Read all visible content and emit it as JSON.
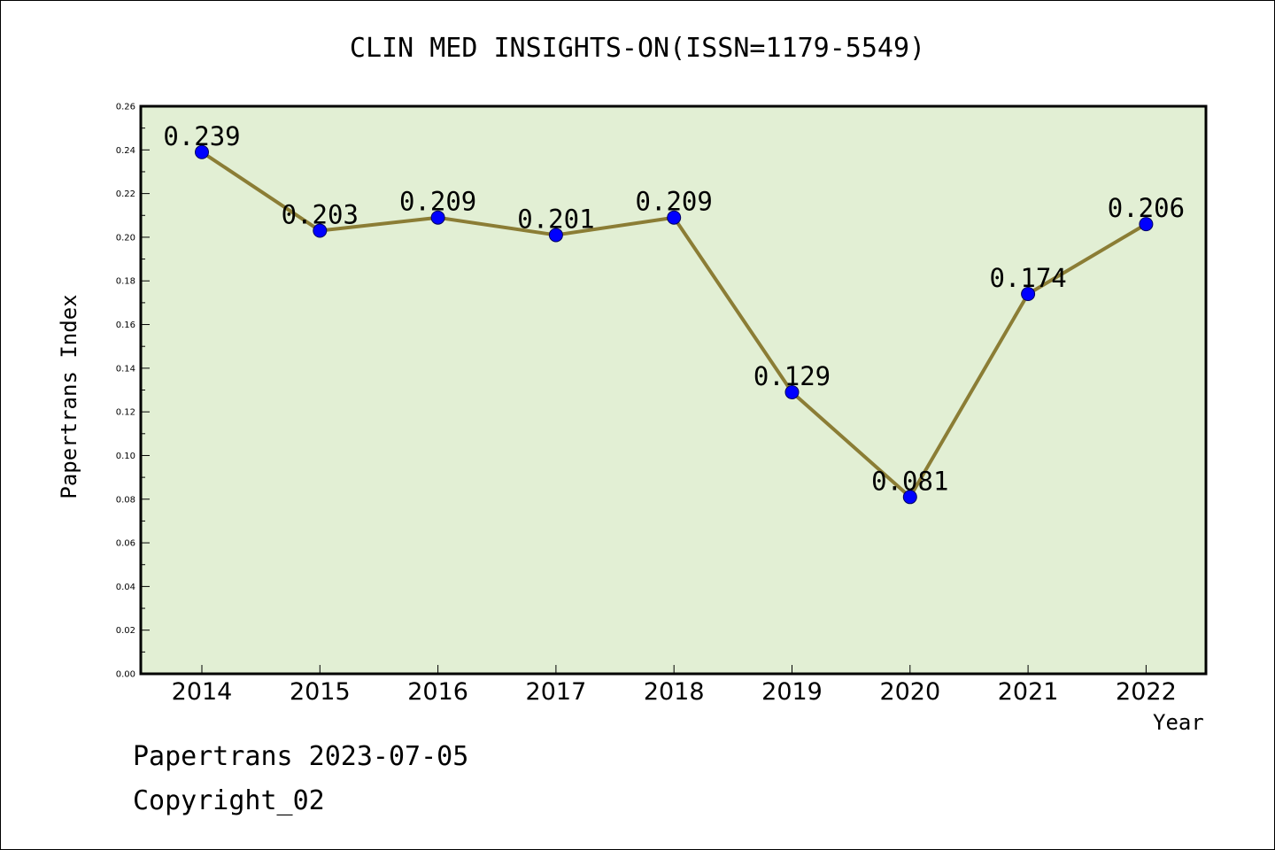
{
  "chart_data": {
    "type": "line",
    "title": "CLIN MED INSIGHTS-ON(ISSN=1179-5549)",
    "xlabel": "Year",
    "ylabel": "Papertrans Index",
    "categories": [
      "2014",
      "2015",
      "2016",
      "2017",
      "2018",
      "2019",
      "2020",
      "2021",
      "2022"
    ],
    "values": [
      0.239,
      0.203,
      0.209,
      0.201,
      0.209,
      0.129,
      0.081,
      0.174,
      0.206
    ],
    "data_labels": [
      "0.239",
      "0.203",
      "0.209",
      "0.201",
      "0.209",
      "0.129",
      "0.081",
      "0.174",
      "0.206"
    ],
    "ylim": [
      0,
      0.26
    ],
    "yticks": [
      "0.00",
      "0.02",
      "0.04",
      "0.06",
      "0.08",
      "0.10",
      "0.12",
      "0.14",
      "0.16",
      "0.18",
      "0.20",
      "0.22",
      "0.24",
      "0.26"
    ],
    "grid": false,
    "colors": {
      "plot_background": "#e2efd4",
      "line": "#8b7d35",
      "marker": "#0000ff",
      "axis": "#000000"
    }
  },
  "footer": {
    "date_text": "Papertrans 2023-07-05",
    "copyright_text": "Copyright_02"
  }
}
